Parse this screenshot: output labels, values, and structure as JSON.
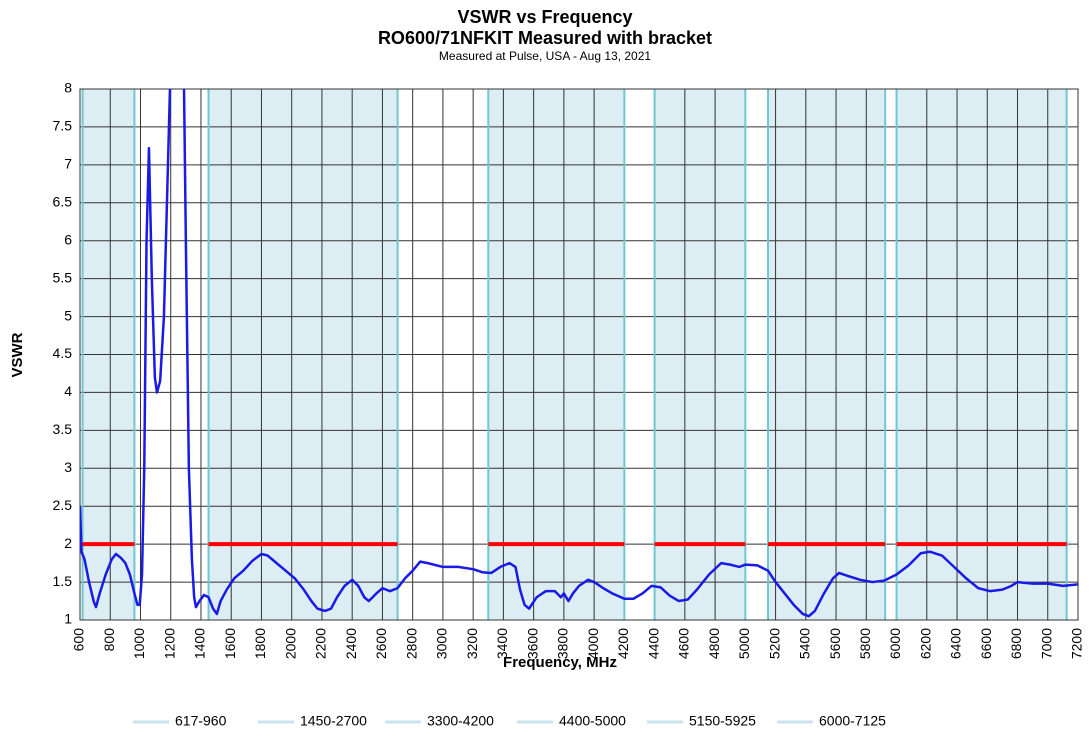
{
  "chart_data": {
    "type": "line",
    "title": "VSWR vs Frequency",
    "subtitle": "RO600/71NFKIT Measured with bracket",
    "note": "Measured at Pulse, USA - Aug 13, 2021",
    "xlabel": "Frequency, MHz",
    "ylabel": "VSWR",
    "xlim": [
      600,
      7200
    ],
    "xticks": [
      600,
      800,
      1000,
      1200,
      1400,
      1600,
      1800,
      2000,
      2200,
      2400,
      2600,
      2800,
      3000,
      3200,
      3400,
      3600,
      3800,
      4000,
      4200,
      4400,
      4600,
      4800,
      5000,
      5200,
      5400,
      5600,
      5800,
      6000,
      6200,
      6400,
      6600,
      6800,
      7000,
      7200
    ],
    "ylim": [
      1,
      8
    ],
    "yticks": [
      1,
      1.5,
      2,
      2.5,
      3,
      3.5,
      4,
      4.5,
      5,
      5.5,
      6,
      6.5,
      7,
      7.5,
      8
    ],
    "grid": true,
    "color": "#1a1ae6",
    "band_color": "#dcedf3",
    "band_edge_color": "#6fc7d2",
    "legend_color": "#c9e4ee",
    "limit_color": "#ff0000",
    "limit": 2,
    "bands": [
      {
        "name": "617-960",
        "start": 617,
        "end": 960
      },
      {
        "name": "1450-2700",
        "start": 1450,
        "end": 2700
      },
      {
        "name": "3300-4200",
        "start": 3300,
        "end": 4200
      },
      {
        "name": "4400-5000",
        "start": 4400,
        "end": 5000
      },
      {
        "name": "5150-5925",
        "start": 5150,
        "end": 5925
      },
      {
        "name": "6000-7125",
        "start": 6000,
        "end": 7125
      }
    ],
    "x": [
      600,
      610,
      630,
      660,
      690,
      706,
      730,
      770,
      810,
      838,
      870,
      900,
      930,
      960,
      980,
      995,
      1010,
      1025,
      1040,
      1056,
      1075,
      1095,
      1109,
      1130,
      1155,
      1175,
      1195,
      1220,
      1270,
      1288,
      1300,
      1320,
      1340,
      1355,
      1367,
      1390,
      1420,
      1450,
      1480,
      1505,
      1530,
      1570,
      1620,
      1680,
      1740,
      1800,
      1840,
      1900,
      1960,
      2020,
      2080,
      2130,
      2170,
      2220,
      2260,
      2300,
      2350,
      2400,
      2440,
      2480,
      2510,
      2560,
      2600,
      2650,
      2700,
      2750,
      2800,
      2850,
      2900,
      3000,
      3100,
      3200,
      3260,
      3320,
      3380,
      3440,
      3480,
      3510,
      3540,
      3570,
      3620,
      3680,
      3740,
      3780,
      3800,
      3830,
      3860,
      3900,
      3960,
      4000,
      4060,
      4120,
      4200,
      4260,
      4320,
      4380,
      4440,
      4500,
      4560,
      4620,
      4680,
      4760,
      4840,
      4900,
      4960,
      5000,
      5080,
      5150,
      5200,
      5260,
      5320,
      5380,
      5420,
      5460,
      5520,
      5580,
      5620,
      5680,
      5760,
      5840,
      5920,
      6000,
      6080,
      6160,
      6220,
      6300,
      6380,
      6460,
      6540,
      6620,
      6700,
      6760,
      6800,
      6900,
      7000,
      7100,
      7200
    ],
    "values": [
      2.5,
      1.9,
      1.8,
      1.5,
      1.25,
      1.17,
      1.35,
      1.6,
      1.8,
      1.87,
      1.82,
      1.75,
      1.6,
      1.35,
      1.2,
      1.2,
      1.6,
      3,
      6,
      7.22,
      5.5,
      4.2,
      4.0,
      4.15,
      5,
      6.5,
      8,
      9,
      9,
      8,
      6,
      3,
      1.8,
      1.3,
      1.17,
      1.25,
      1.33,
      1.3,
      1.15,
      1.08,
      1.25,
      1.4,
      1.55,
      1.65,
      1.78,
      1.87,
      1.85,
      1.75,
      1.65,
      1.55,
      1.4,
      1.25,
      1.15,
      1.12,
      1.15,
      1.3,
      1.45,
      1.53,
      1.45,
      1.3,
      1.25,
      1.35,
      1.42,
      1.38,
      1.42,
      1.55,
      1.65,
      1.77,
      1.75,
      1.7,
      1.7,
      1.67,
      1.63,
      1.62,
      1.7,
      1.75,
      1.7,
      1.4,
      1.2,
      1.15,
      1.3,
      1.38,
      1.38,
      1.3,
      1.35,
      1.25,
      1.35,
      1.45,
      1.53,
      1.5,
      1.42,
      1.35,
      1.28,
      1.28,
      1.35,
      1.45,
      1.43,
      1.32,
      1.25,
      1.27,
      1.4,
      1.6,
      1.75,
      1.73,
      1.7,
      1.73,
      1.72,
      1.65,
      1.5,
      1.35,
      1.2,
      1.08,
      1.05,
      1.12,
      1.35,
      1.55,
      1.62,
      1.58,
      1.53,
      1.5,
      1.52,
      1.6,
      1.72,
      1.88,
      1.9,
      1.85,
      1.7,
      1.55,
      1.42,
      1.38,
      1.4,
      1.45,
      1.5,
      1.48,
      1.48,
      1.45,
      1.47
    ]
  }
}
